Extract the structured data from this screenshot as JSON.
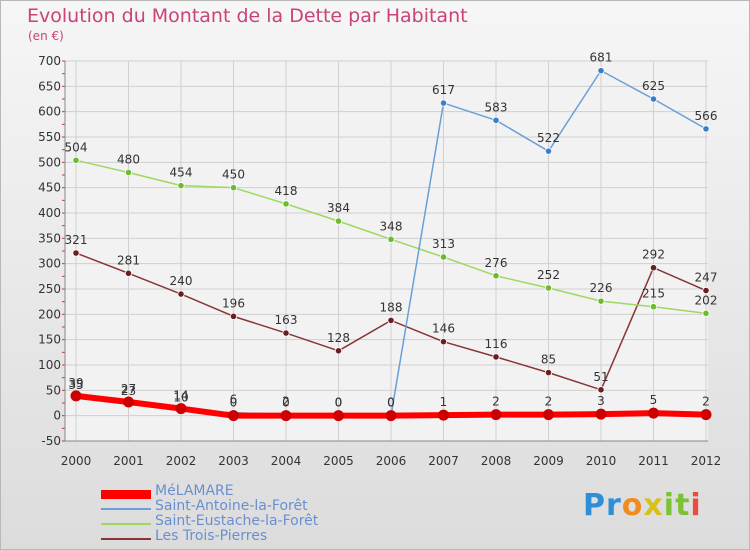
{
  "title": "Evolution du Montant de la Dette par Habitant",
  "subtitle": "(en €)",
  "logo": {
    "letters": [
      "P",
      "r",
      "o",
      "x",
      "i",
      "t",
      "i"
    ],
    "colors": [
      "#2f8fd6",
      "#2f8fd6",
      "#f08c1e",
      "#d8c21a",
      "#7cc234",
      "#7cc234",
      "#e74c3c"
    ]
  },
  "chart_data": {
    "type": "line",
    "title": "Evolution du Montant de la Dette par Habitant",
    "ylabel": "(en €)",
    "x": [
      "2000",
      "2001",
      "2002",
      "2003",
      "2004",
      "2005",
      "2006",
      "2007",
      "2008",
      "2009",
      "2010",
      "2011",
      "2012"
    ],
    "ylim": [
      -50,
      700
    ],
    "yticks": [
      -50,
      0,
      50,
      100,
      150,
      200,
      250,
      300,
      350,
      400,
      450,
      500,
      550,
      600,
      650,
      700
    ],
    "grid": true,
    "legend_position": "bottom-left",
    "series": [
      {
        "name": "MéLAMARE",
        "color": "#ff0000",
        "marker": "#cc0000",
        "width": 6,
        "values": [
          39,
          27,
          14,
          0,
          0,
          0,
          0,
          1,
          2,
          2,
          3,
          5,
          2
        ],
        "labels": [
          "39",
          "27",
          "14",
          "0",
          "0",
          "0",
          "0",
          "1",
          "2",
          "2",
          "3",
          "5",
          "2"
        ]
      },
      {
        "name": "Saint-Antoine-la-Forêt",
        "color": "#6a9fd8",
        "marker": "#3a7ec8",
        "width": 1.5,
        "values": [
          35,
          23,
          10,
          6,
          2,
          0,
          0,
          617,
          583,
          522,
          681,
          625,
          566
        ],
        "labels": [
          "35",
          "23",
          "10",
          "6",
          "2",
          "0",
          "0",
          "617",
          "583",
          "522",
          "681",
          "625",
          "566"
        ]
      },
      {
        "name": "Saint-Eustache-la-Forêt",
        "color": "#9ed860",
        "marker": "#6cbb2c",
        "width": 1.5,
        "values": [
          504,
          480,
          454,
          450,
          418,
          384,
          348,
          313,
          276,
          252,
          226,
          215,
          202
        ],
        "labels": [
          "504",
          "480",
          "454",
          "450",
          "418",
          "384",
          "348",
          "313",
          "276",
          "252",
          "226",
          "215",
          "202"
        ]
      },
      {
        "name": "Les Trois-Pierres",
        "color": "#8a3535",
        "marker": "#6a1f1f",
        "width": 1.5,
        "values": [
          321,
          281,
          240,
          196,
          163,
          128,
          188,
          146,
          116,
          85,
          51,
          292,
          247
        ],
        "labels": [
          "321",
          "281",
          "240",
          "196",
          "163",
          "128",
          "188",
          "146",
          "116",
          "85",
          "51",
          "292",
          "247"
        ]
      }
    ]
  }
}
